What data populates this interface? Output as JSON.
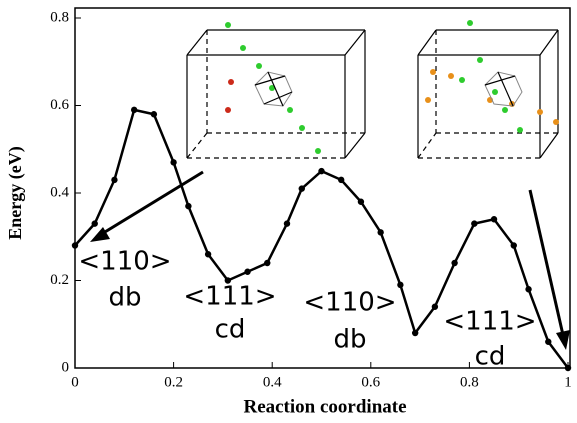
{
  "chart_data": {
    "type": "line",
    "xlabel": "Reaction coordinate",
    "ylabel": "Energy (eV)",
    "x": [
      0,
      0.04,
      0.08,
      0.12,
      0.16,
      0.2,
      0.23,
      0.27,
      0.31,
      0.35,
      0.39,
      0.43,
      0.46,
      0.5,
      0.54,
      0.58,
      0.62,
      0.66,
      0.69,
      0.73,
      0.77,
      0.81,
      0.85,
      0.89,
      0.92,
      0.96,
      1
    ],
    "values": [
      0.28,
      0.33,
      0.43,
      0.59,
      0.58,
      0.47,
      0.37,
      0.26,
      0.2,
      0.22,
      0.24,
      0.33,
      0.41,
      0.45,
      0.43,
      0.38,
      0.31,
      0.19,
      0.08,
      0.14,
      0.24,
      0.33,
      0.34,
      0.28,
      0.18,
      0.06,
      0
    ],
    "color": "#000000",
    "xlim": [
      0,
      1
    ],
    "xticks": [
      0,
      0.2,
      0.4,
      0.6,
      0.8,
      1
    ],
    "ylim": [
      0,
      0.8
    ],
    "yticks": [
      0,
      0.2,
      0.4,
      0.6,
      0.8
    ],
    "annotations": [
      "<110>",
      "db",
      "<111>",
      "cd",
      "<110>",
      "db",
      "<111>",
      "cd"
    ]
  }
}
